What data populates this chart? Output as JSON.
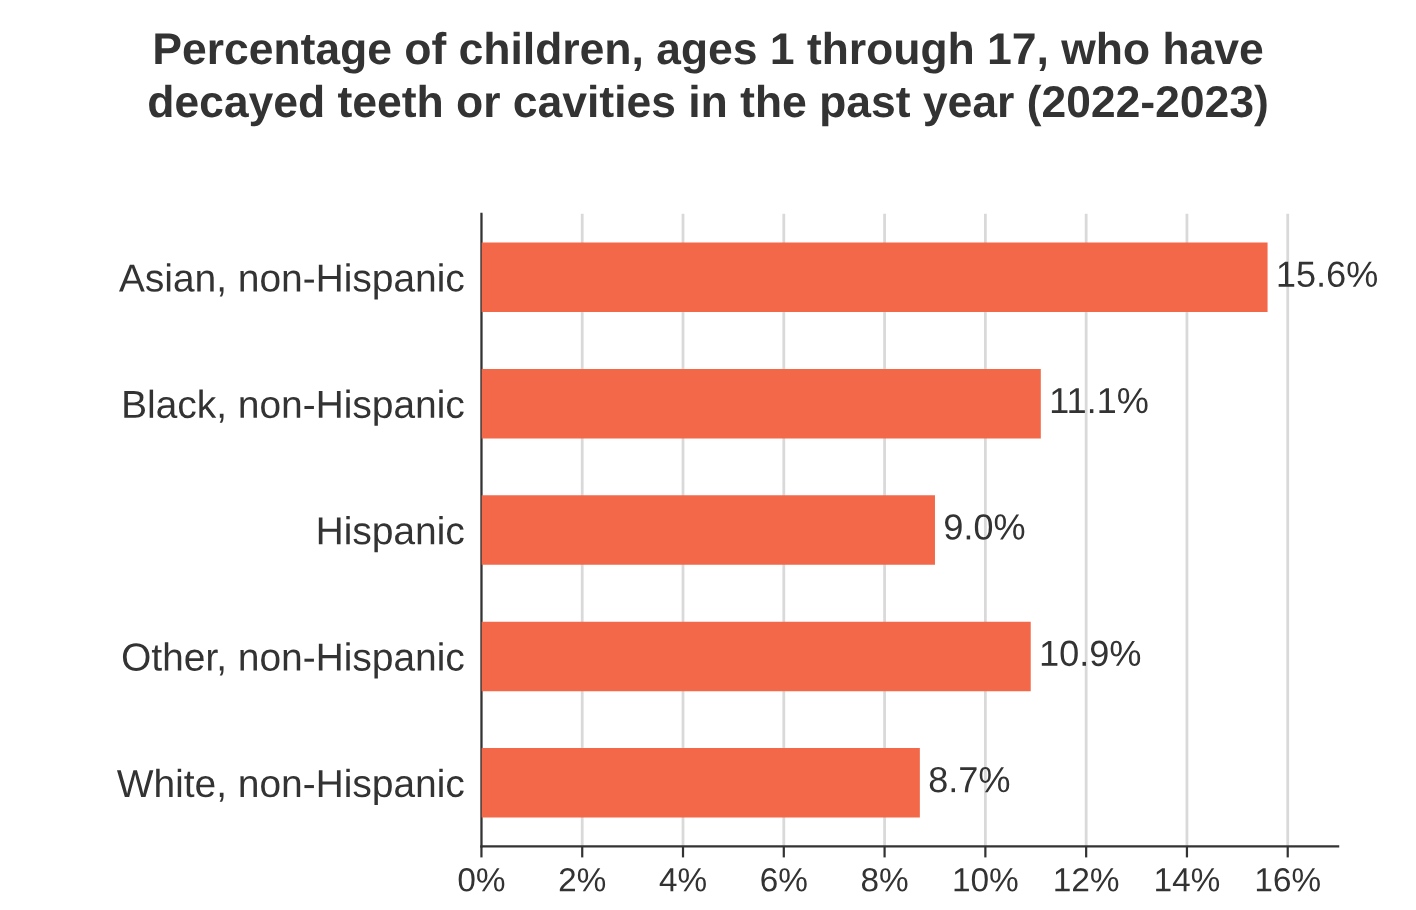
{
  "chart_data": {
    "type": "bar",
    "orientation": "horizontal",
    "title": "Percentage of children, ages 1 through 17, who have\ndecayed teeth or cavities in the past year (2022-2023)",
    "categories": [
      "Asian, non-Hispanic",
      "Black, non-Hispanic",
      "Hispanic",
      "Other, non-Hispanic",
      "White, non-Hispanic"
    ],
    "values": [
      15.6,
      11.1,
      9.0,
      10.9,
      8.7
    ],
    "value_labels": [
      "15.6%",
      "11.1%",
      "9.0%",
      "10.9%",
      "8.7%"
    ],
    "color": "#f26849",
    "xlim": [
      0,
      17
    ],
    "xticks": [
      {
        "value": 0,
        "label": "0%"
      },
      {
        "value": 2,
        "label": "2%"
      },
      {
        "value": 4,
        "label": "4%"
      },
      {
        "value": 6,
        "label": "6%"
      },
      {
        "value": 8,
        "label": "8%"
      },
      {
        "value": 10,
        "label": "10%"
      },
      {
        "value": 12,
        "label": "12%"
      },
      {
        "value": 14,
        "label": "14%"
      },
      {
        "value": 16,
        "label": "16%"
      }
    ],
    "grid": "x",
    "legend": false
  }
}
